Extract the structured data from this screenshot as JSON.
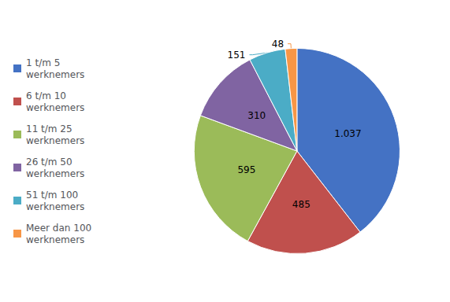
{
  "chart_data": {
    "type": "pie",
    "categories": [
      "1 t/m 5\nwerknemers",
      "6 t/m 10\nwerknemers",
      "11 t/m 25\nwerknemers",
      "26 t/m 50\nwerknemers",
      "51 t/m 100\nwerknemers",
      "Meer dan 100\nwerknemers"
    ],
    "values": [
      1037,
      485,
      595,
      310,
      151,
      48
    ],
    "value_labels": [
      "1.037",
      "485",
      "595",
      "310",
      "151",
      "48"
    ],
    "colors": [
      "#4472C4",
      "#C0504D",
      "#9BBB59",
      "#8064A2",
      "#4BACC6",
      "#F79646"
    ],
    "legend": "left",
    "data_labels": true
  }
}
